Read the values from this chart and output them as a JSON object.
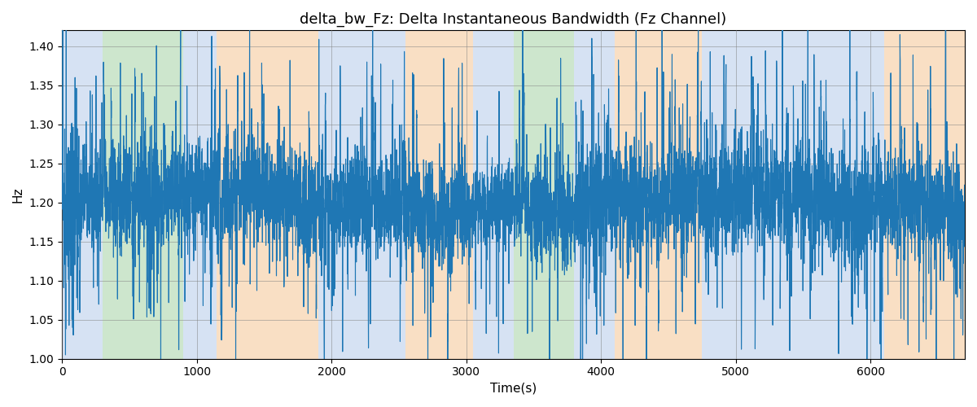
{
  "title": "delta_bw_Fz: Delta Instantaneous Bandwidth (Fz Channel)",
  "xlabel": "Time(s)",
  "ylabel": "Hz",
  "xlim": [
    0,
    6700
  ],
  "ylim": [
    1.0,
    1.42
  ],
  "line_color": "#1f77b4",
  "line_width": 0.8,
  "background_color": "#ffffff",
  "bands": [
    {
      "xmin": 0,
      "xmax": 300,
      "color": "#aec6e8",
      "alpha": 0.5
    },
    {
      "xmin": 300,
      "xmax": 900,
      "color": "#90c990",
      "alpha": 0.45
    },
    {
      "xmin": 900,
      "xmax": 1150,
      "color": "#aec6e8",
      "alpha": 0.5
    },
    {
      "xmin": 1150,
      "xmax": 1900,
      "color": "#f5c08a",
      "alpha": 0.5
    },
    {
      "xmin": 1900,
      "xmax": 2550,
      "color": "#aec6e8",
      "alpha": 0.5
    },
    {
      "xmin": 2550,
      "xmax": 3050,
      "color": "#f5c08a",
      "alpha": 0.5
    },
    {
      "xmin": 3050,
      "xmax": 3350,
      "color": "#aec6e8",
      "alpha": 0.5
    },
    {
      "xmin": 3350,
      "xmax": 3800,
      "color": "#90c990",
      "alpha": 0.45
    },
    {
      "xmin": 3800,
      "xmax": 4100,
      "color": "#aec6e8",
      "alpha": 0.5
    },
    {
      "xmin": 4100,
      "xmax": 4750,
      "color": "#f5c08a",
      "alpha": 0.5
    },
    {
      "xmin": 4750,
      "xmax": 6100,
      "color": "#aec6e8",
      "alpha": 0.5
    },
    {
      "xmin": 6100,
      "xmax": 6700,
      "color": "#f5c08a",
      "alpha": 0.5
    }
  ],
  "xticks": [
    0,
    1000,
    2000,
    3000,
    4000,
    5000,
    6000
  ],
  "yticks": [
    1.0,
    1.05,
    1.1,
    1.15,
    1.2,
    1.25,
    1.3,
    1.35,
    1.4
  ],
  "seed": 42,
  "n_points": 6700,
  "title_fontsize": 13,
  "figsize": [
    12.0,
    5.0
  ],
  "dpi": 100
}
